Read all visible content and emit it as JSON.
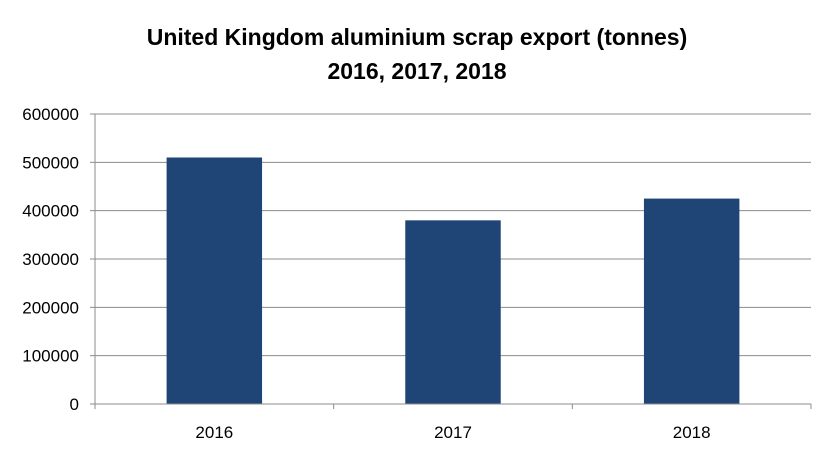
{
  "chart_data": {
    "type": "bar",
    "title": "United Kingdom aluminium scrap export (tonnes)",
    "subtitle": "2016, 2017, 2018",
    "categories": [
      "2016",
      "2017",
      "2018"
    ],
    "values": [
      510000,
      380000,
      425000
    ],
    "yticks": [
      "0",
      "100000",
      "200000",
      "300000",
      "400000",
      "500000",
      "600000"
    ],
    "ylim": [
      0,
      600000
    ],
    "grid": true,
    "legend": "none",
    "bar_color": "#1f4576",
    "grid_color": "#8c8c8c"
  }
}
